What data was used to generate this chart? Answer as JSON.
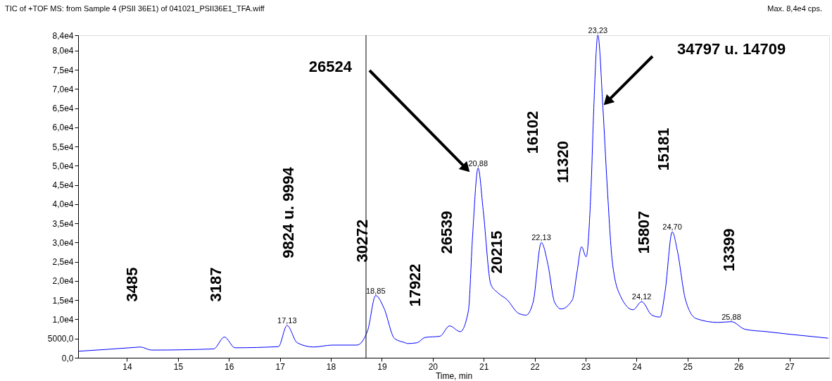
{
  "chart_data": {
    "type": "line",
    "title": "TIC of +TOF MS: from Sample 4 (PSII 36E1) of 041021_PSII36E1_TFA.wiff",
    "xlabel": "Time, min",
    "x": [
      13.05,
      14.16,
      14.26,
      14.48,
      15.7,
      15.91,
      16.12,
      16.97,
      17.14,
      17.34,
      17.66,
      18.03,
      18.51,
      18.72,
      18.88,
      19.04,
      19.25,
      19.46,
      19.5,
      19.69,
      19.85,
      20.14,
      20.33,
      20.54,
      20.7,
      20.78,
      20.89,
      20.99,
      21.14,
      21.28,
      21.46,
      21.68,
      21.83,
      21.97,
      22.13,
      22.26,
      22.39,
      22.52,
      22.74,
      22.83,
      22.92,
      23.01,
      23.11,
      23.16,
      23.24,
      23.34,
      23.42,
      23.53,
      23.69,
      23.93,
      24.1,
      24.3,
      24.46,
      24.56,
      24.7,
      24.8,
      24.96,
      25.17,
      25.6,
      25.86,
      26.13,
      26.55,
      27.02,
      27.76
    ],
    "series": [
      {
        "color": "#0000ff",
        "values": [
          1700,
          2700,
          2800,
          2000,
          2300,
          5400,
          2600,
          2900,
          8400,
          3900,
          2800,
          3300,
          3300,
          7000,
          16200,
          13000,
          5000,
          3900,
          3700,
          3900,
          5300,
          5600,
          8300,
          6800,
          12300,
          31400,
          49400,
          38400,
          19100,
          16900,
          15100,
          11600,
          11100,
          14500,
          30000,
          24300,
          14500,
          12700,
          15100,
          22200,
          28900,
          26300,
          45500,
          65000,
          84000,
          65000,
          45500,
          24300,
          15900,
          12500,
          14600,
          11100,
          10600,
          17300,
          32800,
          27900,
          15100,
          10200,
          9200,
          9400,
          7400,
          6800,
          6100,
          5100
        ]
      }
    ],
    "xlim": [
      13.04,
      27.78
    ],
    "xticks": [
      14,
      15,
      16,
      17,
      18,
      19,
      20,
      21,
      22,
      23,
      24,
      25,
      26,
      27
    ],
    "ylim": [
      0,
      84000
    ],
    "yticks": [
      {
        "value": 0,
        "label": "0,0"
      },
      {
        "value": 5000,
        "label": "5000,0"
      },
      {
        "value": 10000,
        "label": "1,0e4"
      },
      {
        "value": 15000,
        "label": "1,5e4"
      },
      {
        "value": 20000,
        "label": "2,0e4"
      },
      {
        "value": 25000,
        "label": "2,5e4"
      },
      {
        "value": 30000,
        "label": "3,0e4"
      },
      {
        "value": 35000,
        "label": "3,5e4"
      },
      {
        "value": 40000,
        "label": "4,0e4"
      },
      {
        "value": 45000,
        "label": "4,5e4"
      },
      {
        "value": 50000,
        "label": "5,0e4"
      },
      {
        "value": 55000,
        "label": "5,5e4"
      },
      {
        "value": 60000,
        "label": "6,0e4"
      },
      {
        "value": 65000,
        "label": "6,5e4"
      },
      {
        "value": 70000,
        "label": "7,0e4"
      },
      {
        "value": 75000,
        "label": "7,5e4"
      },
      {
        "value": 80000,
        "label": "8,0e4"
      },
      {
        "value": 84000,
        "label": "8,4e4"
      }
    ],
    "grid": false,
    "marker": "none",
    "line_style": "solid",
    "ref_lines": [
      {
        "axis": "x",
        "value": 18.69,
        "color": "#000000"
      }
    ],
    "annotations": [
      "Max. 8,4e4 cps.",
      {
        "text": "17,13",
        "x": 17.14,
        "y": 8400
      },
      {
        "text": "18,85",
        "x": 18.88,
        "y": 16200
      },
      {
        "text": "20,88",
        "x": 20.89,
        "y": 49400
      },
      {
        "text": "22,13",
        "x": 22.13,
        "y": 30000
      },
      {
        "text": "23,23",
        "x": 23.24,
        "y": 84000
      },
      {
        "text": "24,12",
        "x": 24.1,
        "y": 14600
      },
      {
        "text": "24,70",
        "x": 24.7,
        "y": 32800
      },
      {
        "text": "25,88",
        "x": 25.86,
        "y": 9400
      },
      "3485",
      "3187",
      "9824 u. 9994",
      "30272",
      "17922",
      "26539",
      "20215",
      "16102",
      "11320",
      "15807",
      "15181",
      "13399",
      "26524",
      "34797 u. 14709"
    ]
  }
}
